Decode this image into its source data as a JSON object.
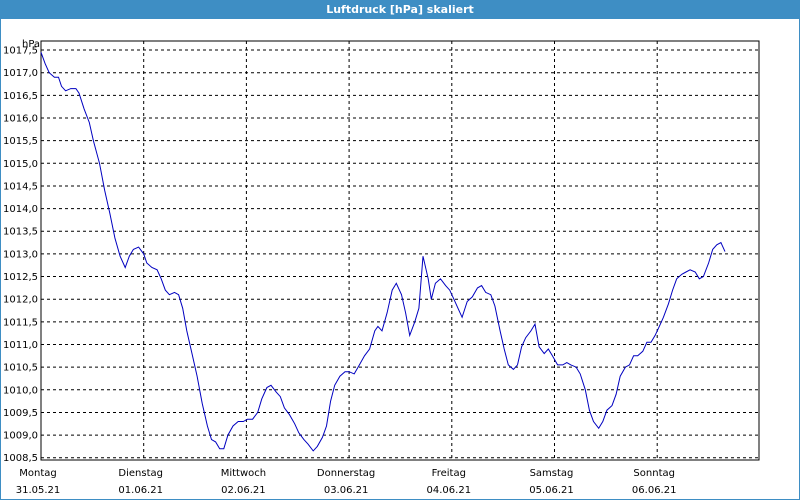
{
  "window": {
    "title": "Luftdruck [hPa] skaliert"
  },
  "colors": {
    "title_bar": "#3e8ec4",
    "line": "#0000c0",
    "grid": "#000000",
    "background": "#ffffff"
  },
  "chart_data": {
    "type": "line",
    "title": "Luftdruck [hPa] skaliert",
    "ylabel": "hPa",
    "xlabel": "",
    "ylim": [
      1008.45,
      1017.7
    ],
    "xlim": [
      0,
      7
    ],
    "y_ticks": [
      "1008,5",
      "1009,0",
      "1009,5",
      "1010,0",
      "1010,5",
      "1011,0",
      "1011,5",
      "1012,0",
      "1012,5",
      "1013,0",
      "1013,5",
      "1014,0",
      "1014,5",
      "1015,0",
      "1015,5",
      "1016,0",
      "1016,5",
      "1017,0",
      "1017,5"
    ],
    "x_ticks": [
      {
        "day": "Montag",
        "date": "31.05.21"
      },
      {
        "day": "Dienstag",
        "date": "01.06.21"
      },
      {
        "day": "Mittwoch",
        "date": "02.06.21"
      },
      {
        "day": "Donnerstag",
        "date": "03.06.21"
      },
      {
        "day": "Freitag",
        "date": "04.06.21"
      },
      {
        "day": "Samstag",
        "date": "05.06.21"
      },
      {
        "day": "Sonntag",
        "date": "06.06.21"
      }
    ],
    "grid": true,
    "x_unit": "days since Montag 31.05.21 00:00",
    "series": [
      {
        "points": [
          [
            0.0,
            1017.45
          ],
          [
            0.04,
            1017.2
          ],
          [
            0.08,
            1017.0
          ],
          [
            0.13,
            1016.9
          ],
          [
            0.17,
            1016.9
          ],
          [
            0.2,
            1016.7
          ],
          [
            0.24,
            1016.6
          ],
          [
            0.29,
            1016.65
          ],
          [
            0.34,
            1016.65
          ],
          [
            0.37,
            1016.55
          ],
          [
            0.42,
            1016.2
          ],
          [
            0.47,
            1015.9
          ],
          [
            0.51,
            1015.5
          ],
          [
            0.57,
            1015.0
          ],
          [
            0.62,
            1014.4
          ],
          [
            0.67,
            1013.9
          ],
          [
            0.72,
            1013.35
          ],
          [
            0.77,
            1012.95
          ],
          [
            0.82,
            1012.7
          ],
          [
            0.86,
            1012.95
          ],
          [
            0.9,
            1013.1
          ],
          [
            0.95,
            1013.15
          ],
          [
            1.0,
            1013.0
          ],
          [
            1.03,
            1012.8
          ],
          [
            1.08,
            1012.7
          ],
          [
            1.13,
            1012.65
          ],
          [
            1.17,
            1012.45
          ],
          [
            1.21,
            1012.2
          ],
          [
            1.25,
            1012.1
          ],
          [
            1.3,
            1012.15
          ],
          [
            1.34,
            1012.1
          ],
          [
            1.38,
            1011.8
          ],
          [
            1.42,
            1011.3
          ],
          [
            1.47,
            1010.8
          ],
          [
            1.52,
            1010.3
          ],
          [
            1.57,
            1009.7
          ],
          [
            1.62,
            1009.2
          ],
          [
            1.66,
            1008.9
          ],
          [
            1.7,
            1008.85
          ],
          [
            1.74,
            1008.7
          ],
          [
            1.78,
            1008.7
          ],
          [
            1.82,
            1009.0
          ],
          [
            1.87,
            1009.2
          ],
          [
            1.92,
            1009.3
          ],
          [
            1.97,
            1009.3
          ],
          [
            2.01,
            1009.35
          ],
          [
            2.06,
            1009.35
          ],
          [
            2.11,
            1009.5
          ],
          [
            2.15,
            1009.8
          ],
          [
            2.2,
            1010.05
          ],
          [
            2.24,
            1010.1
          ],
          [
            2.29,
            1009.95
          ],
          [
            2.33,
            1009.85
          ],
          [
            2.37,
            1009.6
          ],
          [
            2.42,
            1009.45
          ],
          [
            2.47,
            1009.25
          ],
          [
            2.51,
            1009.05
          ],
          [
            2.56,
            1008.9
          ],
          [
            2.6,
            1008.8
          ],
          [
            2.65,
            1008.65
          ],
          [
            2.69,
            1008.75
          ],
          [
            2.74,
            1008.95
          ],
          [
            2.78,
            1009.2
          ],
          [
            2.82,
            1009.75
          ],
          [
            2.86,
            1010.1
          ],
          [
            2.91,
            1010.3
          ],
          [
            2.96,
            1010.4
          ],
          [
            3.0,
            1010.4
          ],
          [
            3.05,
            1010.35
          ],
          [
            3.1,
            1010.55
          ],
          [
            3.15,
            1010.75
          ],
          [
            3.2,
            1010.9
          ],
          [
            3.25,
            1011.3
          ],
          [
            3.28,
            1011.4
          ],
          [
            3.32,
            1011.3
          ],
          [
            3.37,
            1011.7
          ],
          [
            3.42,
            1012.2
          ],
          [
            3.46,
            1012.35
          ],
          [
            3.51,
            1012.1
          ],
          [
            3.55,
            1011.7
          ],
          [
            3.59,
            1011.2
          ],
          [
            3.64,
            1011.5
          ],
          [
            3.68,
            1011.8
          ],
          [
            3.72,
            1012.95
          ],
          [
            3.77,
            1012.45
          ],
          [
            3.8,
            1012.0
          ],
          [
            3.84,
            1012.35
          ],
          [
            3.89,
            1012.45
          ],
          [
            3.94,
            1012.3
          ],
          [
            3.98,
            1012.2
          ],
          [
            4.02,
            1012.0
          ],
          [
            4.06,
            1011.8
          ],
          [
            4.1,
            1011.6
          ],
          [
            4.15,
            1011.95
          ],
          [
            4.2,
            1012.05
          ],
          [
            4.25,
            1012.25
          ],
          [
            4.29,
            1012.3
          ],
          [
            4.33,
            1012.15
          ],
          [
            4.38,
            1012.1
          ],
          [
            4.42,
            1011.85
          ],
          [
            4.47,
            1011.3
          ],
          [
            4.51,
            1010.9
          ],
          [
            4.55,
            1010.55
          ],
          [
            4.6,
            1010.45
          ],
          [
            4.64,
            1010.55
          ],
          [
            4.68,
            1010.95
          ],
          [
            4.72,
            1011.15
          ],
          [
            4.77,
            1011.3
          ],
          [
            4.81,
            1011.45
          ],
          [
            4.85,
            1010.95
          ],
          [
            4.9,
            1010.8
          ],
          [
            4.94,
            1010.9
          ],
          [
            4.98,
            1010.75
          ],
          [
            5.03,
            1010.55
          ],
          [
            5.08,
            1010.55
          ],
          [
            5.12,
            1010.6
          ],
          [
            5.16,
            1010.55
          ],
          [
            5.21,
            1010.5
          ],
          [
            5.25,
            1010.35
          ],
          [
            5.3,
            1010.0
          ],
          [
            5.34,
            1009.55
          ],
          [
            5.38,
            1009.3
          ],
          [
            5.43,
            1009.15
          ],
          [
            5.47,
            1009.3
          ],
          [
            5.51,
            1009.55
          ],
          [
            5.56,
            1009.65
          ],
          [
            5.6,
            1009.9
          ],
          [
            5.64,
            1010.3
          ],
          [
            5.69,
            1010.5
          ],
          [
            5.73,
            1010.55
          ],
          [
            5.77,
            1010.75
          ],
          [
            5.81,
            1010.75
          ],
          [
            5.86,
            1010.85
          ],
          [
            5.9,
            1011.05
          ],
          [
            5.94,
            1011.05
          ],
          [
            5.98,
            1011.2
          ],
          [
            6.02,
            1011.4
          ],
          [
            6.06,
            1011.6
          ],
          [
            6.11,
            1011.9
          ],
          [
            6.15,
            1012.2
          ],
          [
            6.19,
            1012.45
          ],
          [
            6.24,
            1012.55
          ],
          [
            6.28,
            1012.6
          ],
          [
            6.32,
            1012.65
          ],
          [
            6.37,
            1012.6
          ],
          [
            6.41,
            1012.45
          ],
          [
            6.45,
            1012.5
          ],
          [
            6.5,
            1012.8
          ],
          [
            6.54,
            1013.1
          ],
          [
            6.58,
            1013.2
          ],
          [
            6.62,
            1013.25
          ],
          [
            6.66,
            1013.05
          ]
        ]
      }
    ]
  }
}
